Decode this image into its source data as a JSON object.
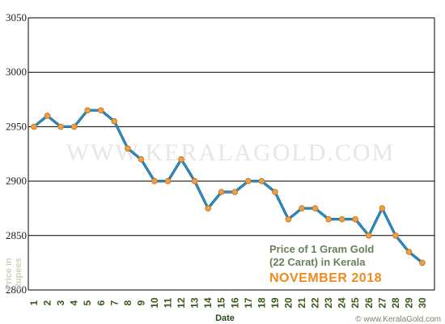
{
  "chart_data": {
    "type": "line",
    "title_line1": "Price of 1 Gram Gold",
    "title_line2": "(22 Carat) in Kerala",
    "title_month": "NOVEMBER 2018",
    "xlabel": "Date",
    "ylabel_line1": "Price in",
    "ylabel_line2": "Rupees",
    "watermark": "WWW.KERALAGOLD.COM",
    "credit": "© www.KeralaGold.com",
    "ylim": [
      2800,
      3050
    ],
    "yticks": [
      2800,
      2850,
      2900,
      2950,
      3000,
      3050
    ],
    "x": [
      1,
      2,
      3,
      4,
      5,
      6,
      7,
      8,
      9,
      10,
      11,
      12,
      13,
      14,
      15,
      16,
      17,
      18,
      19,
      20,
      21,
      22,
      23,
      24,
      25,
      26,
      27,
      28,
      29,
      30
    ],
    "series": [
      {
        "values": [
          2950,
          2960,
          2950,
          2950,
          2965,
          2965,
          2955,
          2930,
          2920,
          2900,
          2900,
          2920,
          2900,
          2875,
          2890,
          2890,
          2900,
          2900,
          2890,
          2865,
          2875,
          2875,
          2865,
          2865,
          2865,
          2850,
          2875,
          2850,
          2835,
          2825
        ]
      }
    ],
    "grid": true,
    "colors": {
      "line": "#2a8fc4",
      "marker": "#f0a040",
      "marker_edge": "#c07020",
      "grid": "#000000"
    }
  }
}
